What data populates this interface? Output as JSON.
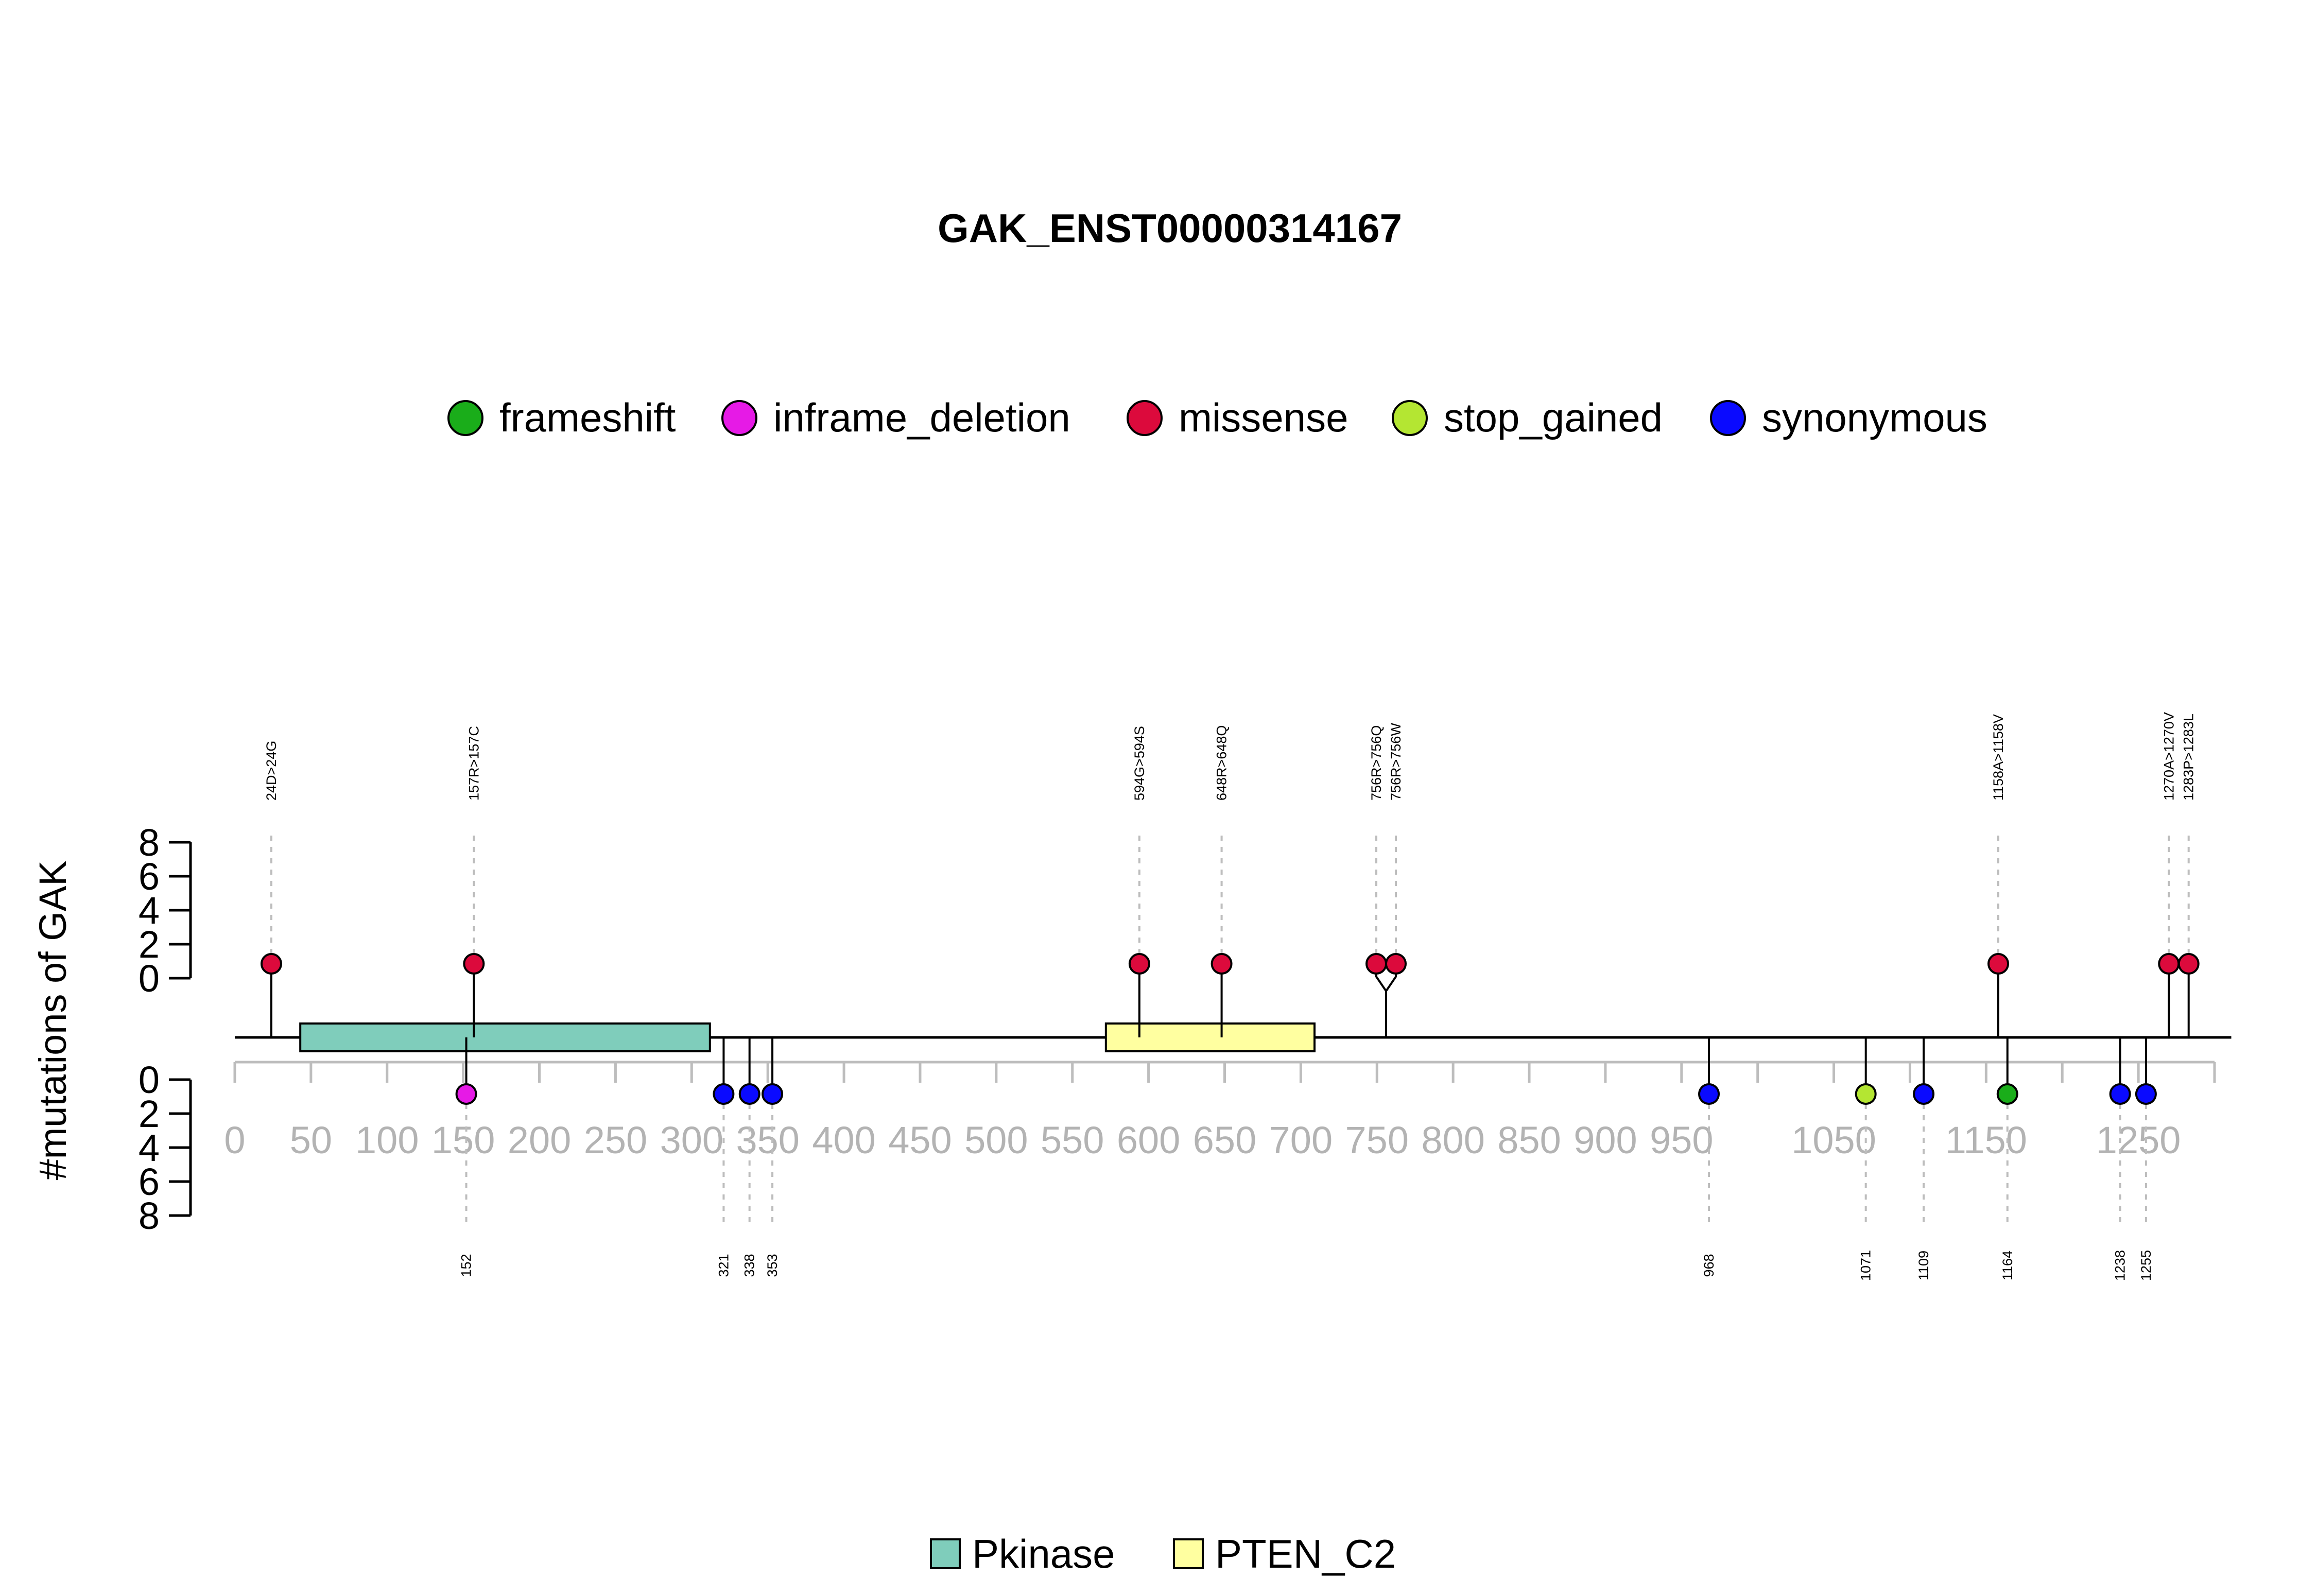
{
  "chart_data": {
    "type": "lollipop",
    "title": "GAK_ENST00000314167",
    "ylabel": "#mutations of GAK",
    "protein_length": 1311,
    "x_range": [
      0,
      1300
    ],
    "x_ticks": [
      0,
      50,
      100,
      150,
      200,
      250,
      300,
      350,
      400,
      450,
      500,
      550,
      600,
      650,
      700,
      750,
      800,
      850,
      900,
      950,
      1050,
      1150,
      1250
    ],
    "x_minor_ticks": [
      1000,
      1100,
      1200,
      1300
    ],
    "y_ticks_top": [
      0,
      2,
      4,
      6,
      8
    ],
    "y_ticks_bottom": [
      0,
      2,
      4,
      6,
      8
    ],
    "colors": {
      "frameshift": "#1aad1a",
      "inframe_deletion": "#e61ae6",
      "missense": "#dc0a3c",
      "stop_gained": "#b4e632",
      "synonymous": "#0a0aff"
    },
    "legend": [
      {
        "label": "frameshift",
        "key": "frameshift"
      },
      {
        "label": "inframe_deletion",
        "key": "inframe_deletion"
      },
      {
        "label": "missense",
        "key": "missense"
      },
      {
        "label": "stop_gained",
        "key": "stop_gained"
      },
      {
        "label": "synonymous",
        "key": "synonymous"
      }
    ],
    "domains": [
      {
        "name": "Pkinase",
        "start": 43,
        "end": 312,
        "color": "#7fcdbb"
      },
      {
        "name": "PTEN_C2",
        "start": 572,
        "end": 709,
        "color": "#ffffa0"
      }
    ],
    "mutations_top": [
      {
        "pos": 24,
        "label": "24D>24G",
        "type": "missense",
        "count": 1
      },
      {
        "pos": 157,
        "label": "157R>157C",
        "type": "missense",
        "count": 1
      },
      {
        "pos": 594,
        "label": "594G>594S",
        "type": "missense",
        "count": 1
      },
      {
        "pos": 648,
        "label": "648R>648Q",
        "type": "missense",
        "count": 1
      },
      {
        "pos": 756,
        "label": "756R>756Q",
        "type": "missense",
        "count": 1
      },
      {
        "pos": 756,
        "label": "756R>756W",
        "type": "missense",
        "count": 1
      },
      {
        "pos": 1158,
        "label": "1158A>1158V",
        "type": "missense",
        "count": 1
      },
      {
        "pos": 1270,
        "label": "1270A>1270V",
        "type": "missense",
        "count": 1
      },
      {
        "pos": 1283,
        "label": "1283P>1283L",
        "type": "missense",
        "count": 1
      }
    ],
    "mutations_bottom": [
      {
        "pos": 152,
        "label": "152",
        "type": "inframe_deletion",
        "count": 1
      },
      {
        "pos": 321,
        "label": "321",
        "type": "synonymous",
        "count": 1
      },
      {
        "pos": 338,
        "label": "338",
        "type": "synonymous",
        "count": 1
      },
      {
        "pos": 353,
        "label": "353",
        "type": "synonymous",
        "count": 1
      },
      {
        "pos": 968,
        "label": "968",
        "type": "synonymous",
        "count": 1
      },
      {
        "pos": 1071,
        "label": "1071",
        "type": "stop_gained",
        "count": 1
      },
      {
        "pos": 1109,
        "label": "1109",
        "type": "synonymous",
        "count": 1
      },
      {
        "pos": 1164,
        "label": "1164",
        "type": "frameshift",
        "count": 1
      },
      {
        "pos": 1238,
        "label": "1238",
        "type": "synonymous",
        "count": 1
      },
      {
        "pos": 1255,
        "label": "1255",
        "type": "synonymous",
        "count": 1
      }
    ],
    "domain_legend": [
      {
        "label": "Pkinase",
        "color": "#7fcdbb"
      },
      {
        "label": "PTEN_C2",
        "color": "#ffffa0"
      }
    ]
  }
}
